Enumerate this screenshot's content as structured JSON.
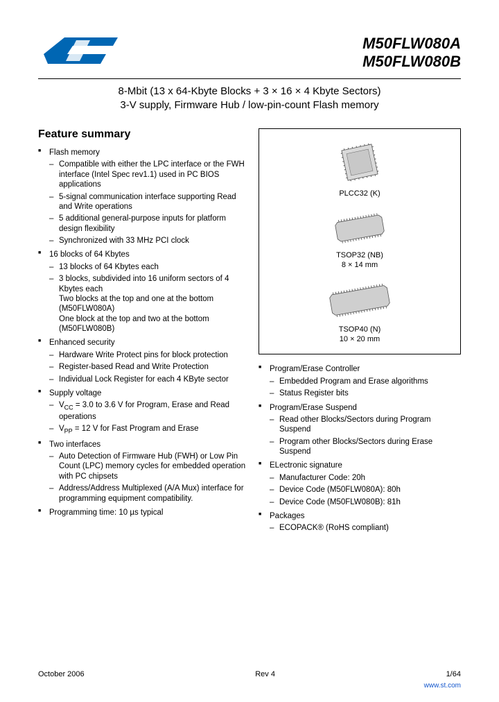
{
  "header": {
    "part1": "M50FLW080A",
    "part2": "M50FLW080B",
    "subtitle_line1": "8-Mbit (13 x 64-Kbyte Blocks + 3 × 16 × 4 Kbyte Sectors)",
    "subtitle_line2": "3-V supply, Firmware Hub / low-pin-count Flash memory"
  },
  "feature_heading": "Feature summary",
  "logo_color": "#0066b3",
  "features_left": [
    {
      "title": "Flash memory",
      "items": [
        "Compatible with either the LPC interface or the FWH interface (Intel Spec rev1.1) used in PC BIOS applications",
        "5-signal communication interface supporting Read and Write operations",
        "5 additional general-purpose inputs for platform design flexibility",
        "Synchronized with 33 MHz PCI clock"
      ]
    },
    {
      "title": "16 blocks of 64 Kbytes",
      "items": [
        "13 blocks of 64 Kbytes each",
        "3 blocks, subdivided into 16 uniform sectors of 4 Kbytes each\nTwo blocks at the top and one at the bottom (M50FLW080A)\nOne block at the top and two at the bottom (M50FLW080B)"
      ]
    },
    {
      "title": "Enhanced security",
      "items": [
        "Hardware Write Protect pins for block protection",
        "Register-based Read and Write Protection",
        "Individual Lock Register for each 4 KByte sector"
      ]
    },
    {
      "title": "Supply voltage",
      "items": [
        "V_CC = 3.0 to 3.6 V for Program, Erase and Read operations",
        "V_PP = 12 V for Fast Program and Erase"
      ]
    },
    {
      "title": "Two interfaces",
      "items": [
        "Auto Detection of Firmware Hub (FWH) or Low Pin Count (LPC) memory cycles for embedded operation with PC chipsets",
        "Address/Address Multiplexed (A/A Mux) interface for programming equipment compatibility."
      ]
    },
    {
      "title": "Programming time: 10 µs typical",
      "items": []
    }
  ],
  "packages": [
    {
      "label": "PLCC32 (K)",
      "dim": ""
    },
    {
      "label": "TSOP32 (NB)",
      "dim": "8 × 14 mm"
    },
    {
      "label": "TSOP40 (N)",
      "dim": "10 × 20 mm"
    }
  ],
  "features_right": [
    {
      "title": "Program/Erase Controller",
      "items": [
        "Embedded Program and Erase algorithms",
        "Status Register bits"
      ]
    },
    {
      "title": "Program/Erase Suspend",
      "items": [
        "Read other Blocks/Sectors during Program Suspend",
        "Program other Blocks/Sectors during Erase Suspend"
      ]
    },
    {
      "title": "ELectronic signature",
      "items": [
        "Manufacturer Code: 20h",
        "Device Code (M50FLW080A): 80h",
        "Device Code (M50FLW080B): 81h"
      ]
    },
    {
      "title": "Packages",
      "items": [
        "ECOPACK® (RoHS compliant)"
      ]
    }
  ],
  "footer": {
    "date": "October 2006",
    "rev": "Rev 4",
    "page": "1/64",
    "site": "www.st.com"
  }
}
